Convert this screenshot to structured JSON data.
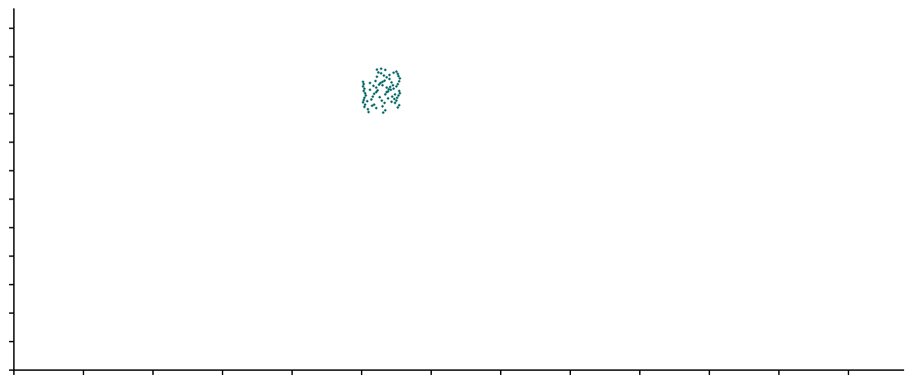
{
  "chart_data": {
    "type": "scatter",
    "title": "",
    "xlabel": "",
    "ylabel": "",
    "xlim": [
      0,
      128
    ],
    "ylim": [
      0,
      127
    ],
    "x_ticks": [
      0,
      10,
      20,
      30,
      40,
      50,
      60,
      70,
      80,
      90,
      100,
      110,
      120
    ],
    "y_ticks": [
      0,
      10,
      20,
      30,
      40,
      50,
      60,
      70,
      80,
      90,
      100,
      110,
      120
    ],
    "tick_labels_shown": false,
    "grid": false,
    "legend": "none",
    "marker": "diamond",
    "series": [
      {
        "color": "#006666",
        "points": [
          [
            50.2,
            101.2
          ],
          [
            50.3,
            100.4
          ],
          [
            50.2,
            99.6
          ],
          [
            50.4,
            98.8
          ],
          [
            50.3,
            98.0
          ],
          [
            50.5,
            97.2
          ],
          [
            50.6,
            96.4
          ],
          [
            50.4,
            95.6
          ],
          [
            50.3,
            94.8
          ],
          [
            50.2,
            94.0
          ],
          [
            50.5,
            93.2
          ],
          [
            50.4,
            92.4
          ],
          [
            50.9,
            91.6
          ],
          [
            51.0,
            90.6
          ],
          [
            50.8,
            94.4
          ],
          [
            51.4,
            95.0
          ],
          [
            51.6,
            96.0
          ],
          [
            51.8,
            97.0
          ],
          [
            52.1,
            97.6
          ],
          [
            52.3,
            98.2
          ],
          [
            52.0,
            101.5
          ],
          [
            52.2,
            103.0
          ],
          [
            52.4,
            104.5
          ],
          [
            52.2,
            105.5
          ],
          [
            52.1,
            99.2
          ],
          [
            52.5,
            100.2
          ],
          [
            52.7,
            100.8
          ],
          [
            53.0,
            101.2
          ],
          [
            53.3,
            101.6
          ],
          [
            52.6,
            95.8
          ],
          [
            52.9,
            94.6
          ],
          [
            53.3,
            93.8
          ],
          [
            53.0,
            92.6
          ],
          [
            53.4,
            91.2
          ],
          [
            53.1,
            90.4
          ],
          [
            51.8,
            93.2
          ],
          [
            52.1,
            92.0
          ],
          [
            51.5,
            92.8
          ],
          [
            52.8,
            104.2
          ],
          [
            53.2,
            103.4
          ],
          [
            53.6,
            102.8
          ],
          [
            54.0,
            102.2
          ],
          [
            54.3,
            101.0
          ],
          [
            54.5,
            100.0
          ],
          [
            54.1,
            99.4
          ],
          [
            53.9,
            98.6
          ],
          [
            53.6,
            97.6
          ],
          [
            53.4,
            96.8
          ],
          [
            53.8,
            97.8
          ],
          [
            54.2,
            98.4
          ],
          [
            54.6,
            98.8
          ],
          [
            55.0,
            99.6
          ],
          [
            55.2,
            100.4
          ],
          [
            55.4,
            101.4
          ],
          [
            55.5,
            102.4
          ],
          [
            55.3,
            103.2
          ],
          [
            55.2,
            104.0
          ],
          [
            55.0,
            104.8
          ],
          [
            55.4,
            98.0
          ],
          [
            55.5,
            97.2
          ],
          [
            55.3,
            96.4
          ],
          [
            55.1,
            95.6
          ],
          [
            55.0,
            94.6
          ],
          [
            54.8,
            93.8
          ],
          [
            55.4,
            93.0
          ],
          [
            55.2,
            92.2
          ],
          [
            54.4,
            96.0
          ],
          [
            54.7,
            95.2
          ],
          [
            54.3,
            94.2
          ],
          [
            53.8,
            95.4
          ],
          [
            54.0,
            103.6
          ],
          [
            54.6,
            104.4
          ],
          [
            53.4,
            105.4
          ],
          [
            52.8,
            105.8
          ],
          [
            53.0,
            100.0
          ],
          [
            51.2,
            98.4
          ],
          [
            51.7,
            99.8
          ],
          [
            51.2,
            100.8
          ],
          [
            54.8,
            96.8
          ],
          [
            53.6,
            99.2
          ]
        ]
      }
    ]
  }
}
